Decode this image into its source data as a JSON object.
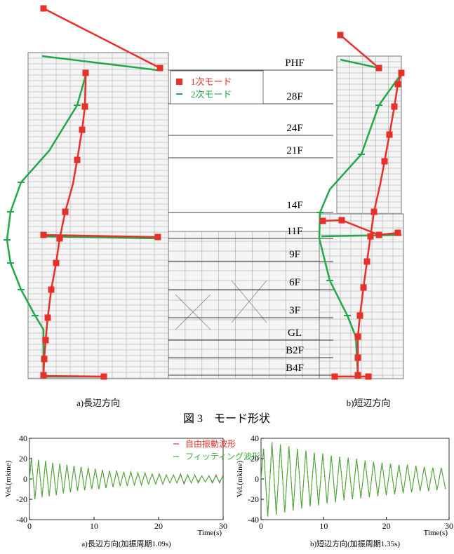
{
  "figure": {
    "floors": [
      "PHF",
      "28F",
      "24F",
      "21F",
      "14F",
      "11F",
      "9F",
      "6F",
      "3F",
      "GL",
      "B2F",
      "B4F"
    ],
    "legend": [
      "1次モード",
      "2次モード"
    ],
    "panel_captions": [
      "a)長辺方向",
      "b)短辺方向"
    ],
    "caption": "図 3　モード形状"
  },
  "chart_data": [
    {
      "type": "line",
      "caption": "a)長辺方向(加振周期1.09s)",
      "x_label": "Time(s)",
      "y_label": "Vel.(mkine)",
      "xlim": [
        0,
        30
      ],
      "xticks": [
        0,
        10,
        20,
        30
      ],
      "ylim": [
        -40,
        40
      ],
      "yticks": [
        -40,
        -20,
        0,
        20,
        40
      ],
      "x": [
        0,
        0.3,
        0.85,
        1.4,
        1.95,
        2.5,
        3.05,
        3.6,
        4.15,
        4.7,
        5.25,
        5.8,
        6.35,
        6.9,
        7.45,
        8,
        8.55,
        9.1,
        9.65,
        10.2,
        10.75,
        11.3,
        11.85,
        12.4,
        12.95,
        13.5,
        14.05,
        14.6,
        15.15,
        15.7,
        16.25,
        16.8,
        17.35,
        17.9,
        18.45,
        19,
        19.55,
        20.1,
        20.65,
        21.2,
        21.75,
        22.3,
        22.85,
        23.4,
        23.95,
        24.5,
        25.05,
        25.6,
        26.15,
        26.7,
        27.25,
        27.8,
        28.35,
        28.9,
        29.45,
        30
      ],
      "series": [
        {
          "name": "自由振動波形",
          "color": "#e8302a",
          "values": [
            0,
            21,
            -20,
            19,
            -18,
            18,
            -17,
            16,
            -16,
            15,
            -14,
            14,
            -13,
            13,
            -12,
            12,
            -11,
            11,
            -10,
            10,
            -10,
            9,
            -9,
            8,
            -8,
            8,
            -7,
            7,
            -7,
            7,
            -6,
            6,
            -6,
            6,
            -5,
            5,
            -5,
            5,
            -5,
            4,
            -4,
            4,
            -4,
            5,
            -5,
            4,
            -4,
            4,
            -3,
            3,
            -3,
            3,
            -4,
            4,
            -4,
            4
          ]
        },
        {
          "name": "フィッティング波形",
          "color": "#3cb43c",
          "values": [
            0,
            21,
            -20,
            19,
            -18,
            18,
            -17,
            16,
            -16,
            15,
            -14,
            14,
            -13,
            13,
            -12,
            12,
            -11,
            11,
            -10,
            10,
            -10,
            9,
            -9,
            8,
            -8,
            8,
            -7,
            7,
            -7,
            7,
            -6,
            6,
            -6,
            6,
            -5,
            5,
            -5,
            5,
            -5,
            4,
            -4,
            4,
            -4,
            4,
            -4,
            4,
            -4,
            4,
            -4,
            3,
            -3,
            3,
            -3,
            3,
            -3,
            3
          ]
        }
      ]
    },
    {
      "type": "line",
      "caption": "b)短辺方向(加振周期1.35s)",
      "x_label": "Time(s)",
      "y_label": "Vel.(mkine)",
      "xlim": [
        0,
        30
      ],
      "xticks": [
        0,
        10,
        20,
        30
      ],
      "ylim": [
        -40,
        40
      ],
      "yticks": [
        -40,
        -20,
        0,
        20,
        40
      ],
      "x": [
        0,
        0.4,
        1.08,
        1.75,
        2.43,
        3.1,
        3.78,
        4.45,
        5.13,
        5.8,
        6.48,
        7.15,
        7.83,
        8.5,
        9.18,
        9.85,
        10.53,
        11.2,
        11.88,
        12.55,
        13.23,
        13.9,
        14.58,
        15.25,
        15.93,
        16.6,
        17.28,
        17.95,
        18.63,
        19.3,
        19.98,
        20.65,
        21.33,
        22.0,
        22.68,
        23.35,
        24.03,
        24.7,
        25.38,
        26.05,
        26.73,
        27.4,
        28.08,
        28.75,
        29.43
      ],
      "series": [
        {
          "color": "#e8302a",
          "values": [
            0,
            30,
            -37,
            36,
            -35,
            34,
            -33,
            32,
            -31,
            30,
            -29,
            28,
            -27,
            26,
            -26,
            25,
            -24,
            23,
            -23,
            22,
            -21,
            21,
            -20,
            20,
            -19,
            18,
            -18,
            17,
            -17,
            16,
            -16,
            15,
            -15,
            14,
            -14,
            14,
            -13,
            13,
            -12,
            12,
            -12,
            11,
            -11,
            11,
            -10
          ]
        },
        {
          "color": "#3cb43c",
          "values": [
            0,
            30,
            -37,
            36,
            -35,
            34,
            -33,
            32,
            -31,
            30,
            -29,
            28,
            -27,
            26,
            -26,
            25,
            -24,
            23,
            -23,
            22,
            -21,
            21,
            -20,
            20,
            -19,
            18,
            -18,
            17,
            -17,
            16,
            -16,
            15,
            -15,
            14,
            -14,
            14,
            -13,
            13,
            -12,
            12,
            -12,
            11,
            -11,
            11,
            -10
          ]
        }
      ]
    }
  ]
}
